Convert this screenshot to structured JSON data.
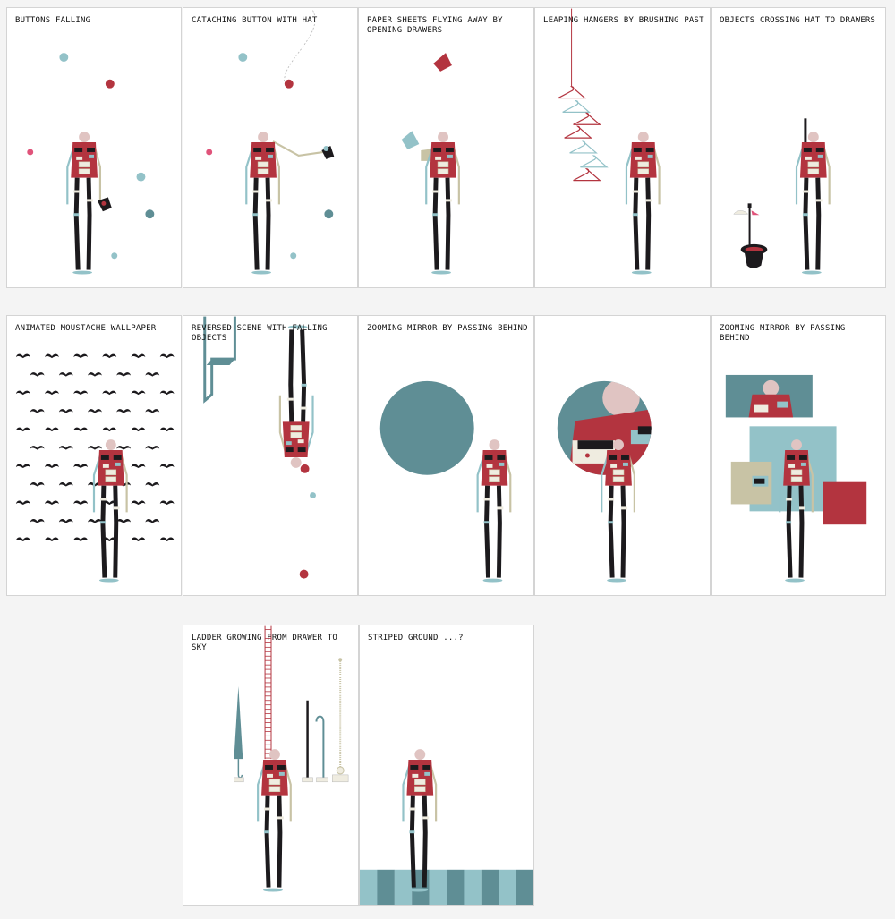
{
  "colors": {
    "red": "#b3343f",
    "teal": "#5f8e95",
    "light_teal": "#93c2c8",
    "beige": "#c8c3a5",
    "black": "#1c1a1d",
    "skin": "#e0c4c2",
    "cream": "#efece0",
    "pink": "#e0537a"
  },
  "panels": [
    {
      "title": "BUTTONS FALLING"
    },
    {
      "title": "CATACHING BUTTON WITH HAT"
    },
    {
      "title": "PAPER SHEETS FLYING AWAY BY OPENING DRAWERS"
    },
    {
      "title": "LEAPING HANGERS BY BRUSHING PAST"
    },
    {
      "title": "OBJECTS CROSSING HAT TO DRAWERS"
    },
    {
      "title": "ANIMATED MOUSTACHE WALLPAPER"
    },
    {
      "title": "REVERSED SCENE WITH FALLING OBJECTS"
    },
    {
      "title": "ZOOMING MIRROR BY PASSING BEHIND"
    },
    {
      "title": ""
    },
    {
      "title": "ZOOMING MIRROR BY PASSING BEHIND"
    },
    {
      "title": "LADDER GROWING FROM DRAWER TO SKY"
    },
    {
      "title": "STRIPED GROUND ...?"
    }
  ]
}
